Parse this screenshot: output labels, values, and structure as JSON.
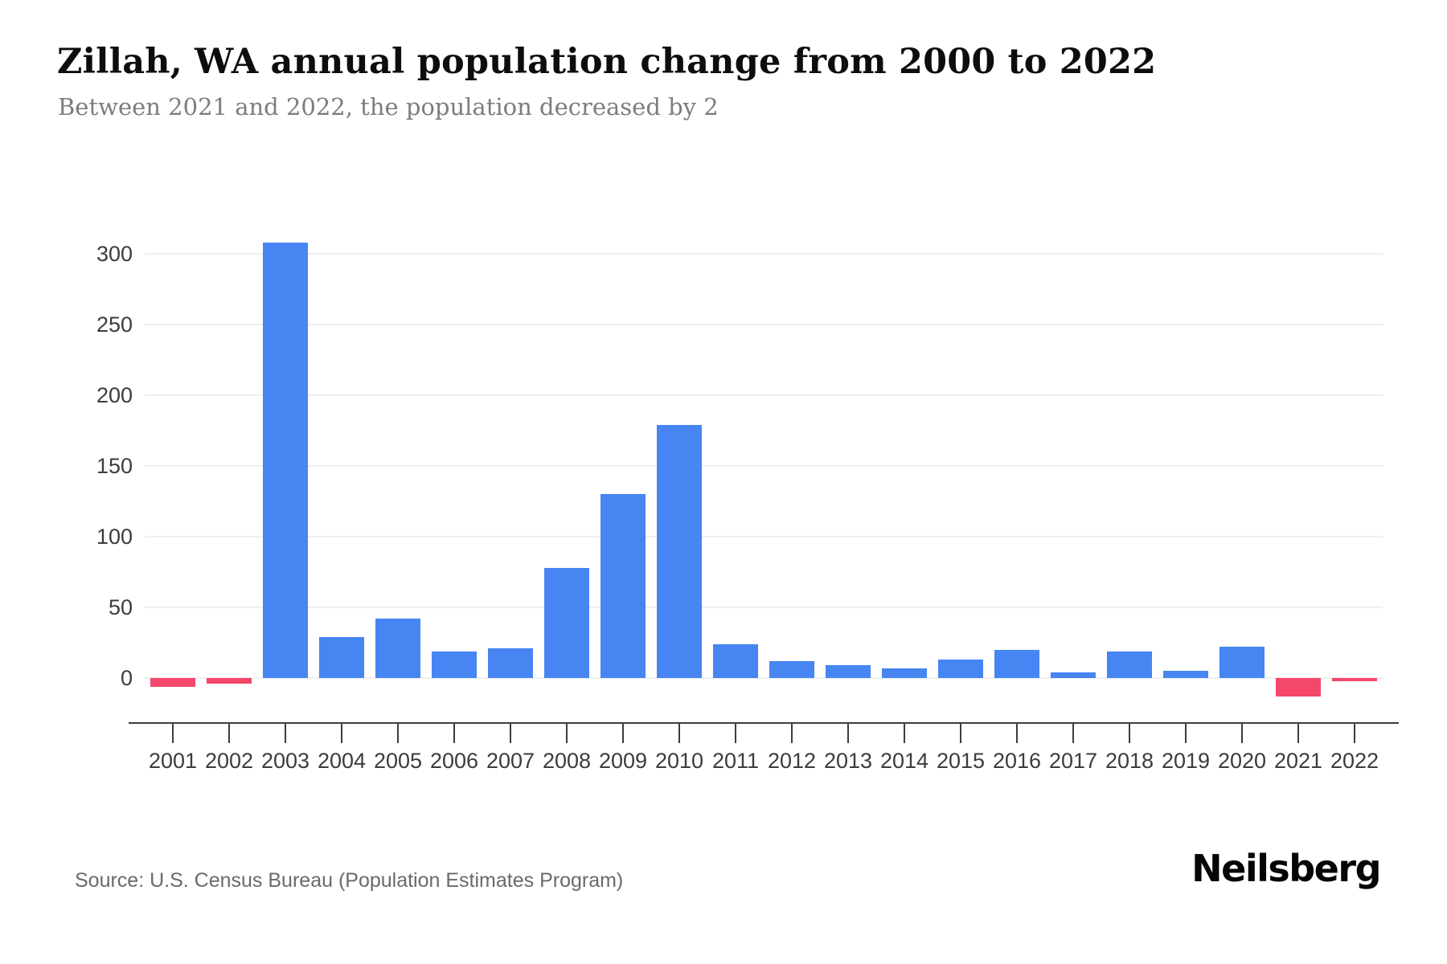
{
  "header": {
    "title": "Zillah, WA annual population change from 2000 to 2022",
    "subtitle": "Between 2021 and 2022, the population decreased by 2"
  },
  "footer": {
    "source": "Source: U.S. Census Bureau (Population Estimates Program)",
    "brand": "Neilsberg"
  },
  "chart_data": {
    "type": "bar",
    "title": "Zillah, WA annual population change from 2000 to 2022",
    "subtitle": "Between 2021 and 2022, the population decreased by 2",
    "categories": [
      "2001",
      "2002",
      "2003",
      "2004",
      "2005",
      "2006",
      "2007",
      "2008",
      "2009",
      "2010",
      "2011",
      "2012",
      "2013",
      "2014",
      "2015",
      "2016",
      "2017",
      "2018",
      "2019",
      "2020",
      "2021",
      "2022"
    ],
    "values": [
      -6,
      -4,
      308,
      29,
      42,
      19,
      21,
      78,
      130,
      179,
      24,
      12,
      9,
      7,
      13,
      20,
      4,
      19,
      5,
      22,
      -13,
      -2
    ],
    "yticks": [
      0,
      50,
      100,
      150,
      200,
      250,
      300
    ],
    "ylim": [
      -35,
      337
    ],
    "xlabel": "",
    "ylabel": "",
    "grid": true,
    "legend": false,
    "bar_color_positive": "#4685F2",
    "bar_color_negative": "#F4476B"
  }
}
